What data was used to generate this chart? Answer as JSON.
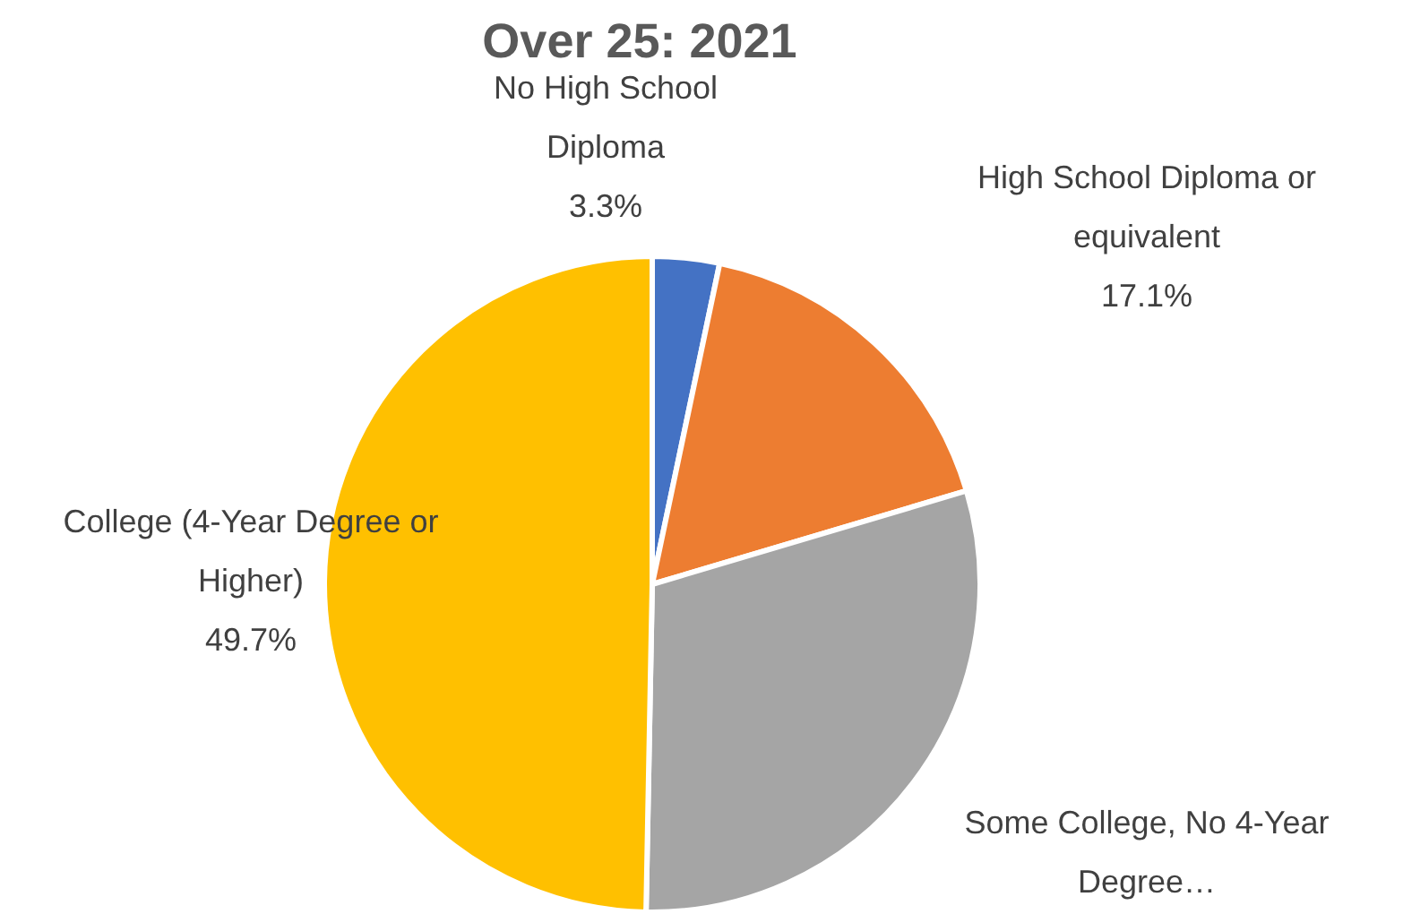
{
  "chart_data": {
    "type": "pie",
    "title": "Over 25: 2021",
    "categories": [
      "No High School Diploma",
      "High School Diploma or equivalent",
      "Some College, No 4-Year Degree…",
      "College (4-Year Degree or Higher)"
    ],
    "values": [
      3.3,
      17.1,
      29.9,
      49.7
    ],
    "value_labels": [
      "3.3%",
      "17.1%",
      null,
      "49.7%"
    ],
    "colors": [
      "#4472c4",
      "#ed7d31",
      "#a5a5a5",
      "#ffc000"
    ]
  }
}
